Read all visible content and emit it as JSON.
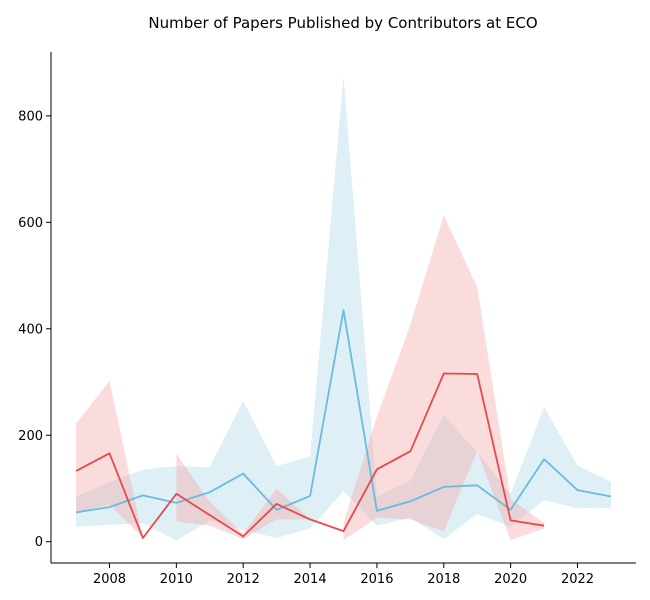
{
  "chart_data": {
    "type": "line",
    "title": "Number of Papers Published by Contributors at ECO",
    "xlabel": "",
    "ylabel": "",
    "xlim": [
      2006.25,
      2023.75
    ],
    "ylim": [
      -40,
      920
    ],
    "xticks": [
      2008,
      2010,
      2012,
      2014,
      2016,
      2018,
      2020,
      2022
    ],
    "yticks": [
      0,
      200,
      400,
      600,
      800
    ],
    "grid": false,
    "legend": "none",
    "series": [
      {
        "color": "#6bbadf",
        "band_color": "#add8e6",
        "points": [
          {
            "x": 2007,
            "y": 55,
            "lo": 28,
            "hi": 85
          },
          {
            "x": 2008,
            "y": 65,
            "lo": 32,
            "hi": 112
          },
          {
            "x": 2009,
            "y": 87,
            "lo": 35,
            "hi": 135
          },
          {
            "x": 2010,
            "y": 73,
            "lo": 2,
            "hi": 142
          },
          {
            "x": 2011,
            "y": 93,
            "lo": 40,
            "hi": 140
          },
          {
            "x": 2012,
            "y": 128,
            "lo": 22,
            "hi": 265
          },
          {
            "x": 2013,
            "y": 60,
            "lo": 7,
            "hi": 142
          },
          {
            "x": 2014,
            "y": 86,
            "lo": 25,
            "hi": 160
          },
          {
            "x": 2015,
            "y": 435,
            "lo": 95,
            "hi": 875
          },
          {
            "x": 2016,
            "y": 58,
            "lo": 30,
            "hi": 85
          },
          {
            "x": 2017,
            "y": 76,
            "lo": 45,
            "hi": 115
          },
          {
            "x": 2018,
            "y": 103,
            "lo": 5,
            "hi": 238
          },
          {
            "x": 2019,
            "y": 106,
            "lo": 52,
            "hi": 168
          },
          {
            "x": 2020,
            "y": 60,
            "lo": 28,
            "hi": 90
          },
          {
            "x": 2021,
            "y": 155,
            "lo": 78,
            "hi": 253
          },
          {
            "x": 2022,
            "y": 97,
            "lo": 63,
            "hi": 143
          },
          {
            "x": 2023,
            "y": 85,
            "lo": 63,
            "hi": 113
          }
        ]
      },
      {
        "color": "#e84a4a",
        "band_color": "#f6a8a8",
        "points": [
          {
            "x": 2007,
            "y": 133,
            "lo": 52,
            "hi": 222
          },
          {
            "x": 2008,
            "y": 166,
            "lo": 70,
            "hi": 302
          },
          {
            "x": 2009,
            "y": 7,
            "lo": 7,
            "hi": 7,
            "gap_after": true
          },
          {
            "x": 2010,
            "y": 90,
            "lo": 38,
            "hi": 165
          },
          {
            "x": 2011,
            "y": 50,
            "lo": 30,
            "hi": 75
          },
          {
            "x": 2012,
            "y": 10,
            "lo": 5,
            "hi": 15
          },
          {
            "x": 2013,
            "y": 71,
            "lo": 42,
            "hi": 100
          },
          {
            "x": 2014,
            "y": 42,
            "lo": 42,
            "hi": 42,
            "gap_after": true
          },
          {
            "x": 2015,
            "y": 20,
            "lo": 3,
            "hi": 35
          },
          {
            "x": 2016,
            "y": 136,
            "lo": 45,
            "hi": 235
          },
          {
            "x": 2017,
            "y": 170,
            "lo": 42,
            "hi": 408
          },
          {
            "x": 2018,
            "y": 316,
            "lo": 20,
            "hi": 613
          },
          {
            "x": 2019,
            "y": 315,
            "lo": 170,
            "hi": 478
          },
          {
            "x": 2020,
            "y": 40,
            "lo": 3,
            "hi": 80
          },
          {
            "x": 2021,
            "y": 30,
            "lo": 25,
            "hi": 35
          }
        ]
      }
    ]
  }
}
